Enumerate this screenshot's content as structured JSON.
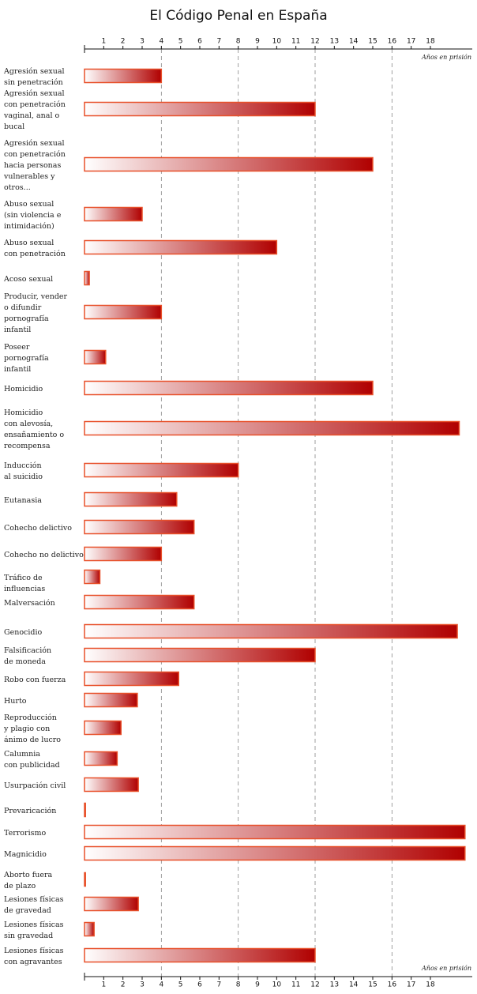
{
  "chart_data": {
    "type": "bar",
    "orientation": "horizontal",
    "title": "El Código Penal en España",
    "x_label": "Años en prisión",
    "categories": [
      "Agresión sexual\nsin penetración",
      "Agresión sexual\ncon penetración\nvaginal, anal o\nbucal",
      "Agresión sexual\ncon penetración\nhacia personas\nvulnerables y\notros...",
      "Abuso sexual\n(sin violencia e\nintimidación)",
      "Abuso sexual\ncon penetración",
      "Acoso sexual",
      "Producir, vender\no difundir\npornografía\ninfantil",
      "Poseer\npornografía\ninfantil",
      "Homicidio",
      "Homicidio\ncon alevosía,\nensañamiento o\nrecompensa",
      "Inducción\nal suicidio",
      "Eutanasia",
      "Cohecho delictivo",
      "Cohecho no delictivo",
      "Tráfico de influencias",
      "Malversación",
      "Genocidio",
      "Falsificación\nde moneda",
      "Robo con fuerza",
      "Hurto",
      "Reproducción\ny plagio con\nánimo de lucro",
      "Calumnia\ncon publicidad",
      "Usurpación civil",
      "Prevaricación",
      "Terrorismo",
      "Magnicidio",
      "Aborto fuera\nde plazo",
      "Lesiones físicas\nde gravedad",
      "Lesiones físicas\nsin gravedad",
      "Lesiones físicas\ncon agravantes"
    ],
    "values": [
      4,
      12,
      15,
      3,
      10,
      0.25,
      4,
      1.1,
      15,
      19.5,
      8,
      4.8,
      5.7,
      4,
      0.8,
      5.7,
      19.4,
      12,
      4.9,
      2.75,
      1.9,
      1.7,
      2.8,
      0.05,
      19.8,
      19.8,
      0.05,
      2.8,
      0.5,
      12
    ],
    "color": "#b00000",
    "edge_color": "#e8502a",
    "xlim": [
      0,
      20.2
    ],
    "xticks": [
      1,
      2,
      3,
      4,
      5,
      6,
      7,
      8,
      9,
      10,
      11,
      12,
      13,
      14,
      15,
      16,
      17,
      18
    ],
    "grid_ticks": [
      4,
      8,
      12,
      16
    ]
  }
}
